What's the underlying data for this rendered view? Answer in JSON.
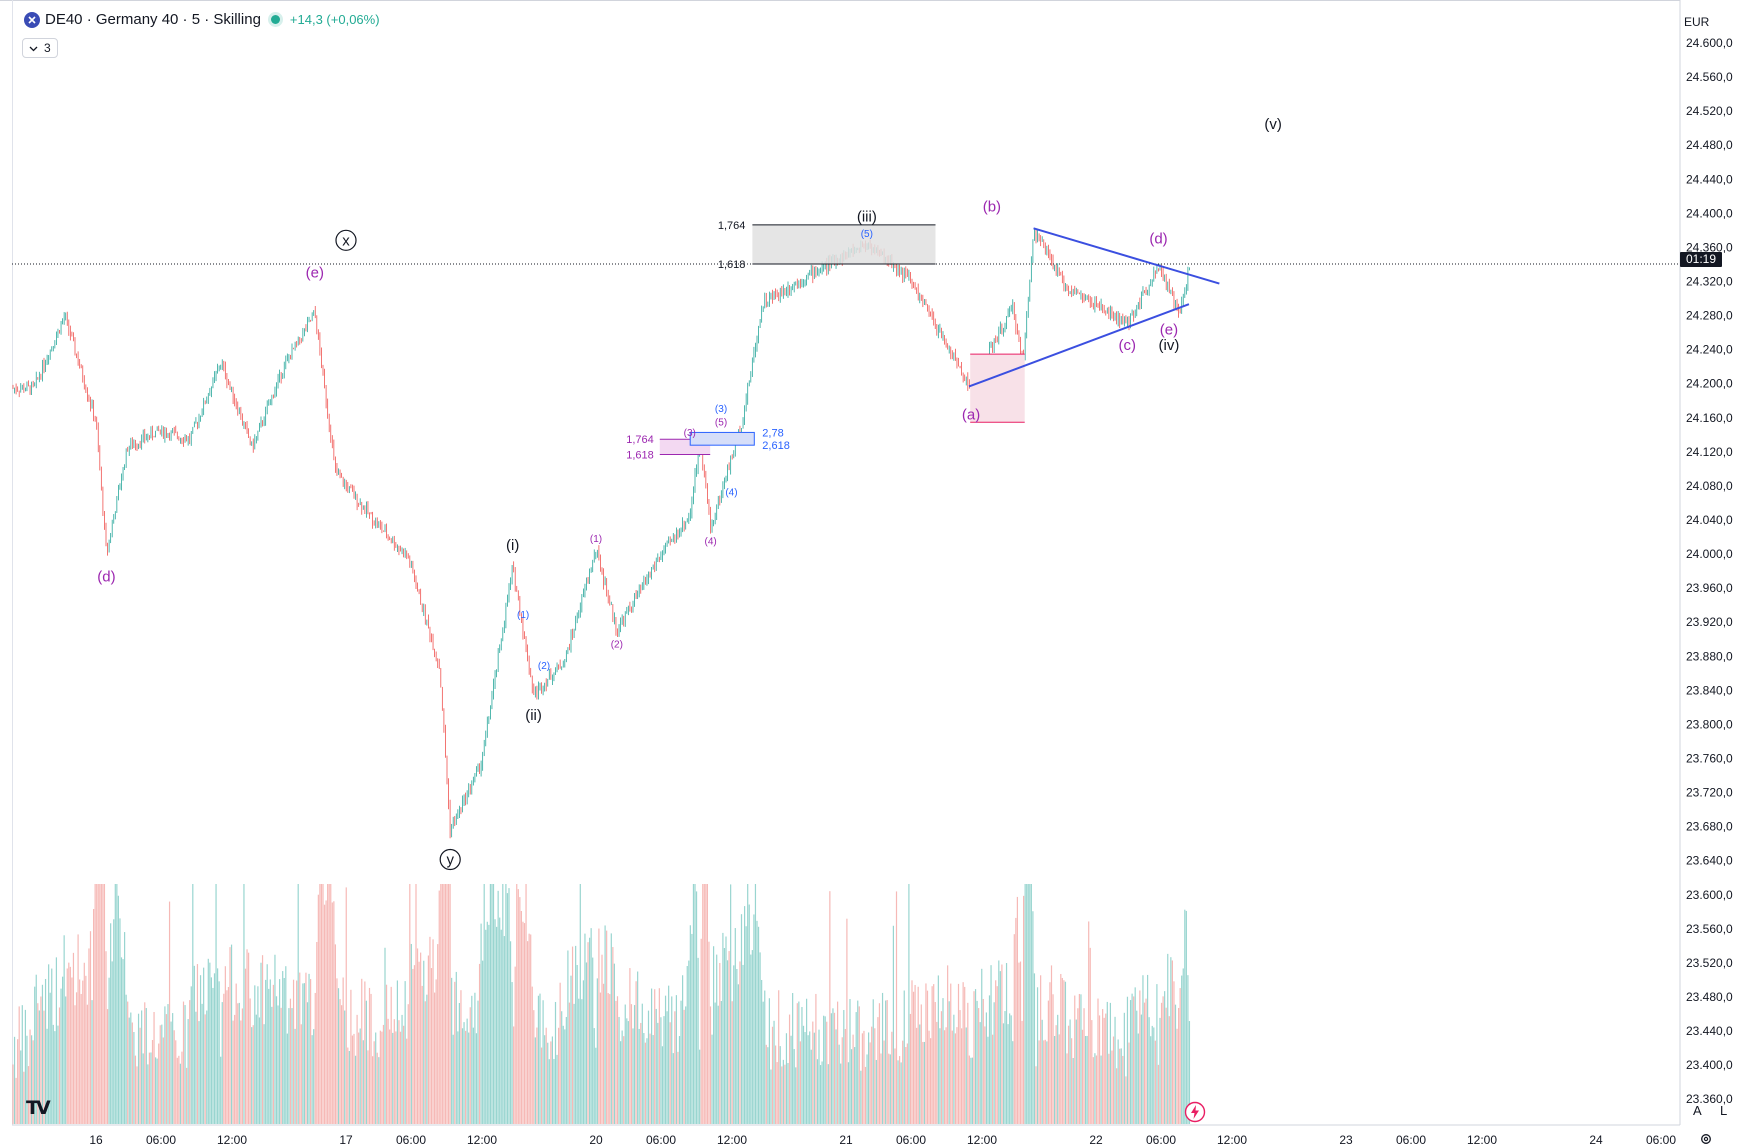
{
  "header": {
    "symbol_title": "DE40 · Germany 40 · 5 · Skilling",
    "change": "+14,3 (+0,06%)",
    "indicator_toggle": "3"
  },
  "price_axis": {
    "currency": "EUR",
    "current_price_label": "01:19",
    "tick_labels": [
      "24.600,0",
      "24.560,0",
      "24.520,0",
      "24.480,0",
      "24.440,0",
      "24.400,0",
      "24.360,0",
      "24.320,0",
      "24.280,0",
      "24.240,0",
      "24.200,0",
      "24.160,0",
      "24.120,0",
      "24.080,0",
      "24.040,0",
      "24.000,0",
      "23.960,0",
      "23.920,0",
      "23.880,0",
      "23.840,0",
      "23.800,0",
      "23.760,0",
      "23.720,0",
      "23.680,0",
      "23.640,0",
      "23.600,0",
      "23.560,0",
      "23.520,0",
      "23.480,0",
      "23.440,0",
      "23.400,0",
      "23.360,0"
    ]
  },
  "time_axis": {
    "tick_labels": [
      "16",
      "06:00",
      "12:00",
      "17",
      "06:00",
      "12:00",
      "20",
      "06:00",
      "12:00",
      "21",
      "06:00",
      "12:00",
      "22",
      "06:00",
      "12:00",
      "23",
      "06:00",
      "12:00",
      "24",
      "06:00"
    ]
  },
  "footer": {
    "logo": "TV",
    "scale_auto": "A",
    "scale_log": "L"
  },
  "colors": {
    "up": "#26a69a",
    "down": "#ef5350",
    "wave_purple": "#9c27b0",
    "wave_blue": "#2962ff",
    "triangle_line": "#3b4fe0",
    "fib_box_gray": "#e0e0e0",
    "fib_box_pink": "#f8e1e8"
  },
  "chart_data": {
    "type": "candlestick",
    "instrument": "DE40",
    "timeframe": "5",
    "ylim": [
      23360,
      24620
    ],
    "current_price": 24346,
    "price_path": [
      {
        "t": "15 18:00",
        "p": 24200
      },
      {
        "t": "15 21:00",
        "p": 24285
      },
      {
        "t": "16 00:00",
        "p": 24160
      },
      {
        "t": "16 01:00",
        "p": 24005
      },
      {
        "t": "16 03:00",
        "p": 24130
      },
      {
        "t": "16 06:00",
        "p": 24150
      },
      {
        "t": "16 09:00",
        "p": 24140
      },
      {
        "t": "16 12:00",
        "p": 24230
      },
      {
        "t": "16 15:00",
        "p": 24130
      },
      {
        "t": "16 18:00",
        "p": 24225
      },
      {
        "t": "16 21:00",
        "p": 24288
      },
      {
        "t": "16 23:00",
        "p": 24100
      },
      {
        "t": "17 03:00",
        "p": 24040
      },
      {
        "t": "17 06:00",
        "p": 24000
      },
      {
        "t": "17 09:00",
        "p": 23870
      },
      {
        "t": "17 10:00",
        "p": 23680
      },
      {
        "t": "17 13:00",
        "p": 23760
      },
      {
        "t": "17 16:00",
        "p": 23990
      },
      {
        "t": "17 18:00",
        "p": 23840
      },
      {
        "t": "17 21:00",
        "p": 23880
      },
      {
        "t": "20 00:00",
        "p": 24010
      },
      {
        "t": "20 02:00",
        "p": 23915
      },
      {
        "t": "20 06:00",
        "p": 24000
      },
      {
        "t": "20 09:00",
        "p": 24050
      },
      {
        "t": "20 10:00",
        "p": 24140
      },
      {
        "t": "20 11:00",
        "p": 24035
      },
      {
        "t": "20 14:00",
        "p": 24160
      },
      {
        "t": "20 16:00",
        "p": 24300
      },
      {
        "t": "20 20:00",
        "p": 24330
      },
      {
        "t": "21 02:00",
        "p": 24370
      },
      {
        "t": "21 06:00",
        "p": 24330
      },
      {
        "t": "21 12:00",
        "p": 24200
      },
      {
        "t": "21 16:00",
        "p": 24295
      },
      {
        "t": "21 17:00",
        "p": 24230
      },
      {
        "t": "21 18:00",
        "p": 24387
      },
      {
        "t": "21 21:00",
        "p": 24320
      },
      {
        "t": "22 03:00",
        "p": 24275
      },
      {
        "t": "22 06:00",
        "p": 24345
      },
      {
        "t": "22 08:00",
        "p": 24285
      },
      {
        "t": "22 09:00",
        "p": 24346
      }
    ],
    "wave_labels": [
      {
        "text": "(d)",
        "t": "16 01:00",
        "p": 23973,
        "color": "purple"
      },
      {
        "text": "(e)",
        "t": "16 21:00",
        "p": 24330,
        "color": "purple"
      },
      {
        "text": "x",
        "t": "17 00:00",
        "p": 24368,
        "color": "black",
        "circled": true
      },
      {
        "text": "y",
        "t": "17 10:00",
        "p": 23640,
        "color": "black",
        "circled": true
      },
      {
        "text": "(i)",
        "t": "17 16:00",
        "p": 24010,
        "color": "black"
      },
      {
        "text": "(ii)",
        "t": "17 18:00",
        "p": 23810,
        "color": "black"
      },
      {
        "text": "(1)",
        "t": "17 17:00",
        "p": 23930,
        "color": "blue",
        "small": true
      },
      {
        "text": "(2)",
        "t": "17 19:00",
        "p": 23870,
        "color": "blue",
        "small": true
      },
      {
        "text": "(1)",
        "t": "20 00:00",
        "p": 24019,
        "color": "purple",
        "small": true
      },
      {
        "text": "(2)",
        "t": "20 02:00",
        "p": 23895,
        "color": "purple",
        "small": true
      },
      {
        "text": "(3)",
        "t": "20 09:00",
        "p": 24144,
        "color": "purple",
        "small": true
      },
      {
        "text": "(4)",
        "t": "20 11:00",
        "p": 24016,
        "color": "purple",
        "small": true
      },
      {
        "text": "(5)",
        "t": "20 12:00",
        "p": 24156,
        "color": "purple",
        "small": true
      },
      {
        "text": "(3)",
        "t": "20 12:00",
        "p": 24172,
        "color": "blue",
        "small": true
      },
      {
        "text": "(4)",
        "t": "20 13:00",
        "p": 24074,
        "color": "blue",
        "small": true
      },
      {
        "text": "(5)",
        "t": "21 02:00",
        "p": 24378,
        "color": "blue",
        "small": true
      },
      {
        "text": "(iii)",
        "t": "21 02:00",
        "p": 24396,
        "color": "black"
      },
      {
        "text": "(a)",
        "t": "21 12:00",
        "p": 24163,
        "color": "purple"
      },
      {
        "text": "(b)",
        "t": "21 14:00",
        "p": 24408,
        "color": "purple"
      },
      {
        "text": "(c)",
        "t": "22 03:00",
        "p": 24245,
        "color": "purple"
      },
      {
        "text": "(d)",
        "t": "22 06:00",
        "p": 24370,
        "color": "purple"
      },
      {
        "text": "(e)",
        "t": "22 07:00",
        "p": 24263,
        "color": "purple"
      },
      {
        "text": "(iv)",
        "t": "22 07:00",
        "p": 24245,
        "color": "black"
      },
      {
        "text": "(v)",
        "t": "22 17:00",
        "p": 24505,
        "color": "black"
      }
    ],
    "fib_levels": [
      {
        "label": "1,764",
        "p": 24392,
        "color": "black"
      },
      {
        "label": "1,618",
        "p": 24346,
        "color": "black"
      },
      {
        "label": "1,764",
        "p": 24140,
        "color": "purple"
      },
      {
        "label": "1,618",
        "p": 24122,
        "color": "purple"
      },
      {
        "label": "2,78",
        "p": 24148,
        "color": "blue"
      },
      {
        "label": "2,618",
        "p": 24133,
        "color": "blue"
      }
    ],
    "triangle": {
      "upper": [
        {
          "t": "21 18:00",
          "p": 24388
        },
        {
          "t": "22 08:00",
          "p": 24337
        }
      ],
      "lower": [
        {
          "t": "21 12:00",
          "p": 24202
        },
        {
          "t": "22 07:00",
          "p": 24290
        }
      ]
    },
    "volume": {
      "note": "relative volume histogram shown beneath price"
    }
  }
}
